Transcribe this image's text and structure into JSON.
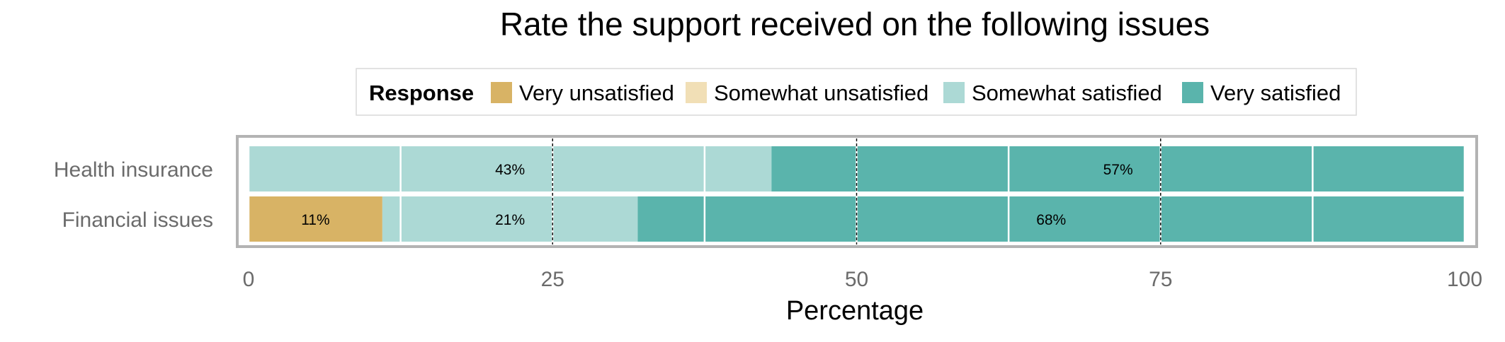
{
  "chart_data": {
    "type": "bar",
    "orientation": "horizontal",
    "stacked": true,
    "title": "Rate the support received on the following issues",
    "xlabel": "Percentage",
    "ylabel": "",
    "xlim": [
      0,
      100
    ],
    "xticks": [
      0,
      25,
      50,
      75,
      100
    ],
    "grid": true,
    "legend": {
      "title": "Response",
      "position": "top",
      "entries": [
        "Very unsatisfied",
        "Somewhat unsatisfied",
        "Somewhat satisfied",
        "Very satisfied"
      ]
    },
    "categories": [
      "Health insurance",
      "Financial issues"
    ],
    "series": [
      {
        "name": "Very unsatisfied",
        "color": "#d8b365",
        "values": [
          0,
          11
        ],
        "labels": [
          "",
          "11%"
        ]
      },
      {
        "name": "Somewhat unsatisfied",
        "color": "#f1dfb6",
        "values": [
          0,
          0
        ],
        "labels": [
          "",
          ""
        ]
      },
      {
        "name": "Somewhat satisfied",
        "color": "#acd9d5",
        "values": [
          43,
          21
        ],
        "labels": [
          "43%",
          "21%"
        ]
      },
      {
        "name": "Very satisfied",
        "color": "#5ab4ac",
        "values": [
          57,
          68
        ],
        "labels": [
          "57%",
          "68%"
        ]
      }
    ]
  }
}
